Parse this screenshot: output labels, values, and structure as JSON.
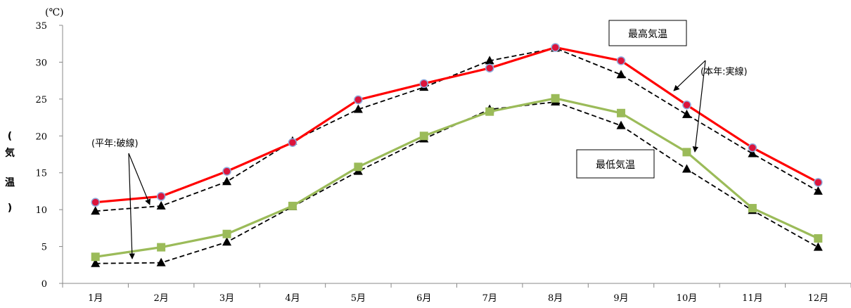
{
  "chart_data": {
    "type": "line",
    "unit_label": "(℃)",
    "ylabel_chars": [
      "(",
      "気",
      "温",
      ")"
    ],
    "categories": [
      "1月",
      "2月",
      "3月",
      "4月",
      "5月",
      "6月",
      "7月",
      "8月",
      "9月",
      "10月",
      "11月",
      "12月"
    ],
    "ylim": [
      0,
      35
    ],
    "yticks": [
      0,
      5,
      10,
      15,
      20,
      25,
      30,
      35
    ],
    "grid": false,
    "series": [
      {
        "name": "最高気温 (本年)",
        "style": "solid",
        "color": "#ff0000",
        "marker": "circle",
        "marker_color": "#dc143c",
        "values": [
          11.0,
          11.8,
          15.2,
          19.1,
          24.9,
          27.1,
          29.2,
          32.0,
          30.2,
          24.2,
          18.4,
          13.7
        ]
      },
      {
        "name": "最高気温 (平年)",
        "style": "dashed",
        "color": "#000000",
        "marker": "triangle",
        "marker_color": "#000000",
        "values": [
          9.8,
          10.5,
          13.8,
          19.3,
          23.6,
          26.6,
          30.2,
          31.9,
          28.3,
          22.9,
          17.6,
          12.5
        ]
      },
      {
        "name": "最低気温 (本年)",
        "style": "solid",
        "color": "#9bbb59",
        "marker": "square",
        "marker_color": "#9bbb59",
        "values": [
          3.6,
          4.9,
          6.7,
          10.5,
          15.8,
          20.0,
          23.3,
          25.1,
          23.1,
          17.8,
          10.2,
          6.1
        ]
      },
      {
        "name": "最低気温 (平年)",
        "style": "dashed",
        "color": "#000000",
        "marker": "triangle",
        "marker_color": "#000000",
        "values": [
          2.7,
          2.8,
          5.6,
          10.4,
          15.2,
          19.6,
          23.6,
          24.6,
          21.4,
          15.5,
          9.9,
          4.9
        ]
      }
    ],
    "annotations": {
      "max_box": "最高気温",
      "min_box": "最低気温",
      "actual_note": "(本年:実線)",
      "normal_note": "(平年:破線)"
    }
  }
}
